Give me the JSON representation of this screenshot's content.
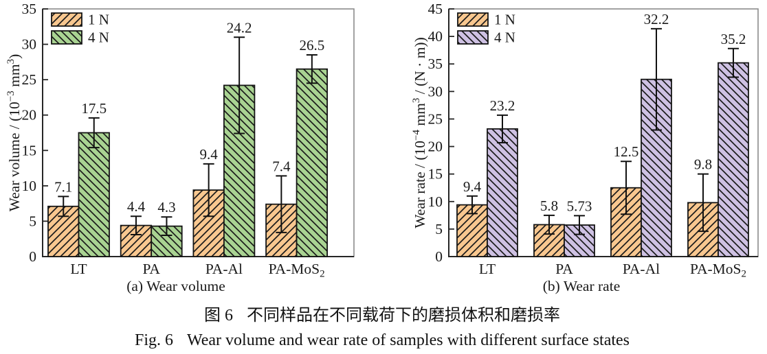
{
  "figure": {
    "caption_zh": {
      "prefix": "图 6",
      "text": "不同样品在不同载荷下的磨损体积和磨损率"
    },
    "caption_en": {
      "prefix": "Fig. 6",
      "text": "Wear volume and wear rate of samples with different surface states"
    }
  },
  "chart_data": [
    {
      "type": "bar",
      "panel_label": "(a) Wear volume",
      "ylabel_segments": [
        {
          "t": "Wear volume / (10"
        },
        {
          "t": "−3",
          "sup": true
        },
        {
          "t": " mm"
        },
        {
          "t": "3",
          "sup": true
        },
        {
          "t": ")"
        }
      ],
      "ylim": [
        0,
        35
      ],
      "ytick_step": 5,
      "grid": false,
      "legend_position": "top-left",
      "categories": [
        [
          {
            "t": "LT"
          }
        ],
        [
          {
            "t": "PA"
          }
        ],
        [
          {
            "t": "PA-Al"
          }
        ],
        [
          {
            "t": "PA-MoS"
          },
          {
            "t": "2",
            "sub": true
          }
        ]
      ],
      "series": [
        {
          "name": "1 N",
          "fill": "#F8C78F",
          "hatch": "/",
          "values": [
            7.1,
            4.4,
            9.4,
            7.4
          ],
          "errors": [
            1.4,
            1.3,
            3.7,
            4.0
          ],
          "labels": [
            "7.1",
            "4.4",
            "9.4",
            "7.4"
          ]
        },
        {
          "name": "4 N",
          "fill": "#A9D392",
          "hatch": "\\",
          "values": [
            17.5,
            4.3,
            24.2,
            26.5
          ],
          "errors": [
            2.1,
            1.3,
            6.8,
            2.0
          ],
          "labels": [
            "17.5",
            "4.3",
            "24.2",
            "26.5"
          ]
        }
      ]
    },
    {
      "type": "bar",
      "panel_label": "(b) Wear rate",
      "ylabel_segments": [
        {
          "t": "Wear rate / (10"
        },
        {
          "t": "−4",
          "sup": true
        },
        {
          "t": " mm"
        },
        {
          "t": "3",
          "sup": true
        },
        {
          "t": " / (N · m))"
        }
      ],
      "ylim": [
        0,
        45
      ],
      "ytick_step": 5,
      "grid": false,
      "legend_position": "top-left",
      "categories": [
        [
          {
            "t": "LT"
          }
        ],
        [
          {
            "t": "PA"
          }
        ],
        [
          {
            "t": "PA-Al"
          }
        ],
        [
          {
            "t": "PA-MoS"
          },
          {
            "t": "2",
            "sub": true
          }
        ]
      ],
      "series": [
        {
          "name": "1 N",
          "fill": "#F8C78F",
          "hatch": "/",
          "values": [
            9.4,
            5.8,
            12.5,
            9.8
          ],
          "errors": [
            1.6,
            1.7,
            4.8,
            5.2
          ],
          "labels": [
            "9.4",
            "5.8",
            "12.5",
            "9.8"
          ]
        },
        {
          "name": "4 N",
          "fill": "#CEC1E3",
          "hatch": "\\",
          "values": [
            23.2,
            5.73,
            32.2,
            35.2
          ],
          "errors": [
            2.5,
            1.7,
            9.2,
            2.6
          ],
          "labels": [
            "23.2",
            "5.73",
            "32.2",
            "35.2"
          ]
        }
      ]
    }
  ]
}
